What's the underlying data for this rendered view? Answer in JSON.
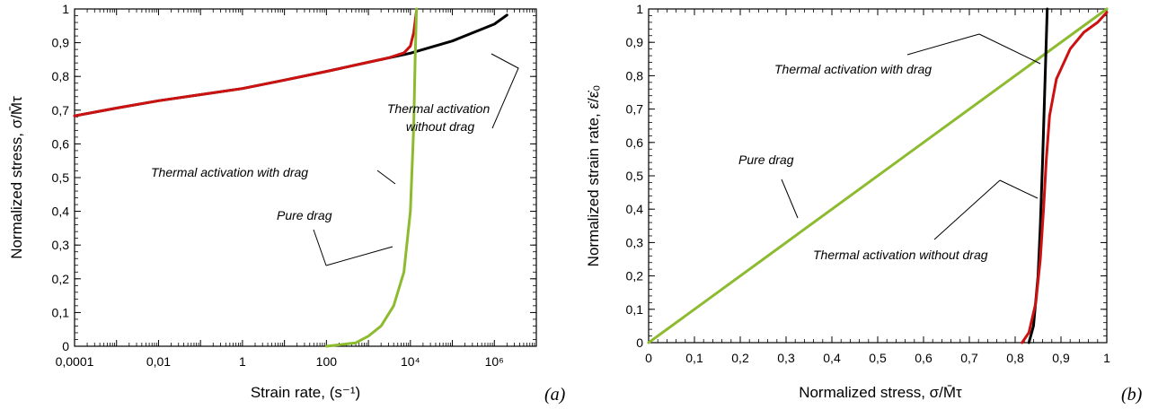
{
  "chart_data": [
    {
      "type": "line",
      "panel_label": "(a)",
      "xlabel": "Strain rate, (s⁻¹)",
      "ylabel": "Normalized stress, σ/M̄τ",
      "x_scale": "log",
      "xlim": [
        0.0001,
        10000000
      ],
      "ylim": [
        0,
        1
      ],
      "x_tick_labels": [
        "0,0001",
        "0,01",
        "1",
        "100",
        "10⁴",
        "10⁶"
      ],
      "x_tick_values": [
        0.0001,
        0.01,
        1,
        100,
        10000,
        1000000
      ],
      "y_tick_labels": [
        "0",
        "0,1",
        "0,2",
        "0,3",
        "0,4",
        "0,5",
        "0,6",
        "0,7",
        "0,8",
        "0,9",
        "1"
      ],
      "y_tick_values": [
        0,
        0.1,
        0.2,
        0.3,
        0.4,
        0.5,
        0.6,
        0.7,
        0.8,
        0.9,
        1
      ],
      "grid": false,
      "series": [
        {
          "color": "#000000",
          "x": [
            0.0001,
            0.001,
            0.01,
            0.1,
            1,
            10,
            100,
            1000,
            10000,
            100000,
            1000000,
            2000000
          ],
          "y": [
            0.683,
            0.706,
            0.728,
            0.746,
            0.764,
            0.789,
            0.815,
            0.842,
            0.869,
            0.905,
            0.955,
            0.982
          ]
        },
        {
          "color": "#cc1111",
          "x": [
            0.0001,
            0.001,
            0.01,
            0.1,
            1,
            10,
            100,
            1000,
            3000,
            7000,
            10000,
            12000,
            14000
          ],
          "y": [
            0.683,
            0.706,
            0.728,
            0.746,
            0.764,
            0.789,
            0.815,
            0.842,
            0.855,
            0.87,
            0.89,
            0.93,
            0.995
          ]
        },
        {
          "color": "#8dbb2f",
          "x": [
            100,
            500,
            1000,
            2000,
            4000,
            7000,
            10000,
            12000,
            13000,
            14000
          ],
          "y": [
            0.0,
            0.01,
            0.03,
            0.06,
            0.12,
            0.22,
            0.4,
            0.65,
            0.85,
            1.0
          ]
        }
      ],
      "annotations": [
        {
          "text": "Thermal activation with drag",
          "line": [
            "Thermal activation with drag"
          ]
        },
        {
          "text": "Thermal activation without drag",
          "line": [
            "Thermal activation",
            "without drag"
          ]
        },
        {
          "text": "Pure drag",
          "line": [
            "Pure drag"
          ]
        }
      ]
    },
    {
      "type": "line",
      "panel_label": "(b)",
      "xlabel": "Normalized stress, σ/M̄τ",
      "ylabel": "Normalized strain rate, ε̇/ε̇₀",
      "xlim": [
        0,
        1
      ],
      "ylim": [
        0,
        1
      ],
      "x_tick_labels": [
        "0",
        "0,1",
        "0,2",
        "0,3",
        "0,4",
        "0,5",
        "0,6",
        "0,7",
        "0,8",
        "0,9",
        "1"
      ],
      "x_tick_values": [
        0,
        0.1,
        0.2,
        0.3,
        0.4,
        0.5,
        0.6,
        0.7,
        0.8,
        0.9,
        1
      ],
      "y_tick_labels": [
        "0",
        "0,1",
        "0,2",
        "0,3",
        "0,4",
        "0,5",
        "0,6",
        "0,7",
        "0,8",
        "0,9",
        "1"
      ],
      "y_tick_values": [
        0,
        0.1,
        0.2,
        0.3,
        0.4,
        0.5,
        0.6,
        0.7,
        0.8,
        0.9,
        1
      ],
      "grid": false,
      "series": [
        {
          "color": "#8dbb2f",
          "x": [
            0,
            1
          ],
          "y": [
            0,
            1
          ]
        },
        {
          "color": "#000000",
          "x": [
            0.83,
            0.84,
            0.85,
            0.855,
            0.86,
            0.865,
            0.87
          ],
          "y": [
            0.0,
            0.05,
            0.2,
            0.35,
            0.55,
            0.78,
            1.0
          ]
        },
        {
          "color": "#cc1111",
          "x": [
            0.815,
            0.83,
            0.845,
            0.855,
            0.862,
            0.868,
            0.875,
            0.89,
            0.92,
            0.95,
            0.98,
            1.0
          ],
          "y": [
            0.0,
            0.03,
            0.12,
            0.25,
            0.4,
            0.55,
            0.68,
            0.79,
            0.88,
            0.93,
            0.96,
            0.99
          ]
        }
      ],
      "annotations": [
        {
          "text": "Thermal activation with drag",
          "line": [
            "Thermal activation with drag"
          ]
        },
        {
          "text": "Pure drag",
          "line": [
            "Pure drag"
          ]
        },
        {
          "text": "Thermal activation without drag",
          "line": [
            "Thermal activation without drag"
          ]
        }
      ]
    }
  ]
}
